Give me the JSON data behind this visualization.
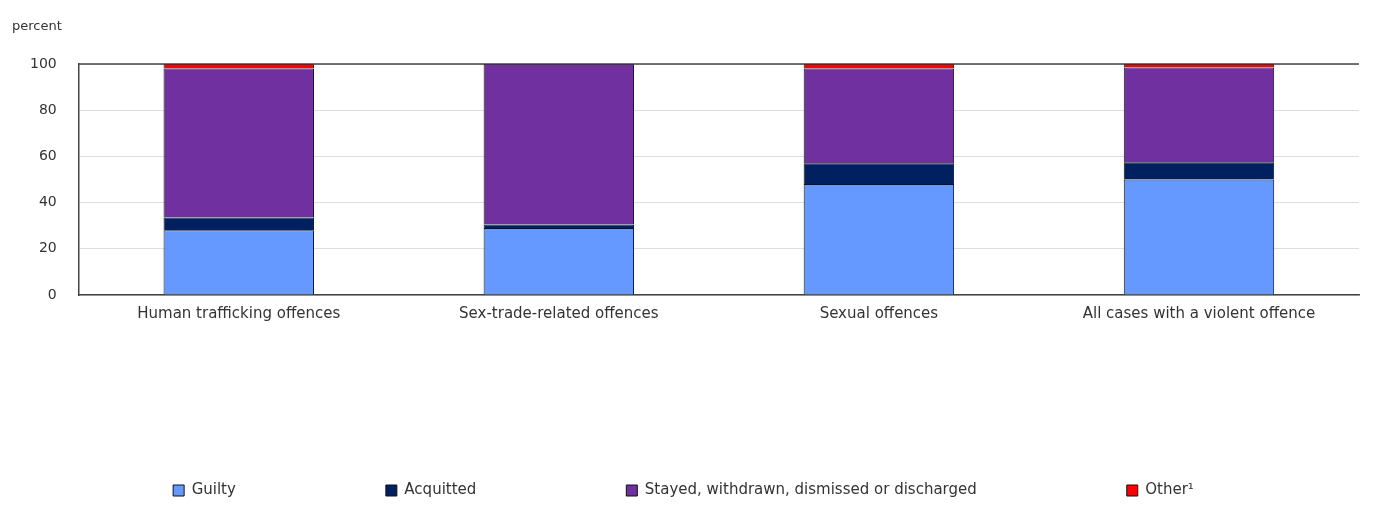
{
  "chart_data": {
    "type": "bar",
    "ylabel": "percent",
    "stacked": true,
    "categories": [
      "Human trafficking offences",
      "Sex-trade-related offences",
      "Sexual offences",
      "All cases with a violent offence"
    ],
    "series": [
      {
        "name": "Guilty",
        "color": "#6699ff",
        "values": [
          28,
          29,
          48,
          50
        ]
      },
      {
        "name": "Acquitted",
        "color": "#002060",
        "values": [
          5.5,
          1.5,
          9,
          7.5
        ]
      },
      {
        "name": "Stayed, withdrawn, dismissed or discharged",
        "color": "#7030a0",
        "values": [
          64.5,
          69.5,
          41,
          41
        ]
      },
      {
        "name": "Other¹",
        "color": "#ff0000",
        "values": [
          2,
          0,
          2,
          1.5
        ]
      }
    ],
    "ylim": [
      0,
      100
    ],
    "yticks": [
      0,
      20,
      40,
      60,
      80,
      100
    ],
    "grid": "y",
    "legend": "bottom"
  }
}
